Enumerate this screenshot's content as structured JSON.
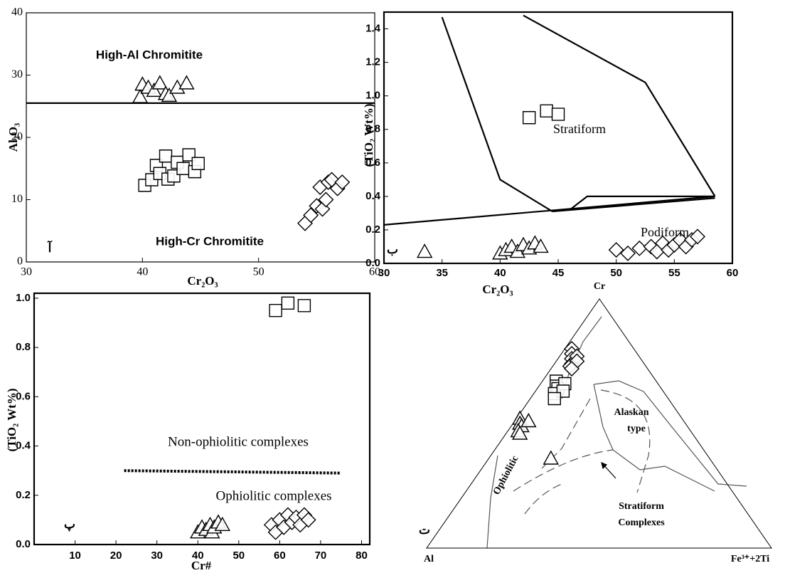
{
  "chart_data": [
    {
      "type": "scatter",
      "panel_label": "آ",
      "xlabel": "Cr₂O₃",
      "ylabel": "Al₂O₃",
      "xlim": [
        30,
        60
      ],
      "xticks": [
        30,
        40,
        50,
        60
      ],
      "ylim": [
        0,
        40
      ],
      "yticks": [
        0,
        10,
        20,
        30,
        40
      ],
      "annotations": [
        "High-Al Chromitite",
        "High-Cr Chromitite"
      ],
      "lines": [
        {
          "x": [
            30,
            60
          ],
          "y": [
            25.5,
            25.5
          ],
          "style": "solid"
        }
      ],
      "series": [
        {
          "marker": "triangle",
          "color": "#000000",
          "x": [
            39.8,
            40,
            40.5,
            41,
            41.5,
            42,
            42.3,
            43,
            43.8
          ],
          "values": [
            26.5,
            28.5,
            28,
            27.5,
            28.7,
            27,
            26.7,
            28,
            28.7
          ]
        },
        {
          "marker": "square",
          "color": "#000000",
          "x": [
            40.2,
            40.8,
            41.2,
            41.5,
            42,
            42.2,
            42.7,
            43,
            43.5,
            44,
            44.5,
            44.8
          ],
          "values": [
            12.3,
            13.2,
            15.5,
            14.2,
            17,
            13.3,
            13.8,
            16,
            15,
            17.2,
            14.5,
            15.8
          ]
        },
        {
          "marker": "diamond",
          "color": "#000000",
          "x": [
            54,
            54.5,
            55,
            55.3,
            55.5,
            55.8,
            56,
            56.3,
            56.8,
            57.2
          ],
          "values": [
            6.2,
            7.5,
            9,
            12,
            8.5,
            10,
            12.8,
            13.2,
            11.8,
            12.8
          ]
        }
      ]
    },
    {
      "type": "scatter",
      "panel_label": "ب",
      "xlabel": "Cr₂O₃",
      "ylabel": "(TiO₂ Wt%)",
      "xlim": [
        30,
        60
      ],
      "xticks": [
        30,
        35,
        40,
        45,
        50,
        55,
        60
      ],
      "ylim": [
        0,
        1.5
      ],
      "yticks": [
        {
          "value": 0,
          "label": "0.0"
        },
        0.2,
        0.4,
        0.6,
        0.8,
        {
          "value": 1,
          "label": "1.0"
        },
        1.2,
        1.4
      ],
      "annotations": [
        "Stratiform",
        "Podiform"
      ],
      "lines": [
        {
          "x": [
            30,
            58.5
          ],
          "y": [
            0.23,
            0.4
          ],
          "style": "solid"
        },
        {
          "x": [
            35,
            40,
            44.5
          ],
          "y": [
            1.47,
            0.5,
            0.31
          ],
          "style": "solid"
        },
        {
          "x": [
            42,
            52.5,
            58.5
          ],
          "y": [
            1.48,
            1.08,
            0.4
          ],
          "style": "solid"
        },
        {
          "x": [
            44.5,
            58.5
          ],
          "y": [
            0.31,
            0.39
          ],
          "style": "solid"
        },
        {
          "x": [
            46,
            47.5,
            58.5
          ],
          "y": [
            0.32,
            0.4,
            0.4
          ],
          "style": "solid"
        }
      ],
      "series": [
        {
          "marker": "triangle",
          "color": "#000000",
          "x": [
            33.5,
            40,
            40.5,
            41,
            41.5,
            42,
            42.5,
            43,
            43.5
          ],
          "values": [
            0.07,
            0.06,
            0.08,
            0.1,
            0.07,
            0.11,
            0.09,
            0.12,
            0.1
          ]
        },
        {
          "marker": "square",
          "color": "#000000",
          "x": [
            42.5,
            44,
            45
          ],
          "values": [
            0.87,
            0.91,
            0.89
          ]
        },
        {
          "marker": "diamond",
          "color": "#000000",
          "x": [
            50,
            51,
            52,
            53,
            53.5,
            54,
            54.5,
            55,
            55.5,
            56,
            56.5,
            57
          ],
          "values": [
            0.08,
            0.06,
            0.09,
            0.1,
            0.07,
            0.12,
            0.08,
            0.11,
            0.14,
            0.1,
            0.14,
            0.16
          ]
        }
      ]
    },
    {
      "type": "scatter",
      "panel_label": "پ",
      "xlabel": "Cr#",
      "ylabel": "(TiO₂ Wt%)",
      "xlim": [
        0,
        82
      ],
      "xticks": [
        10,
        20,
        30,
        40,
        50,
        60,
        70,
        80
      ],
      "ylim": [
        0,
        1.02
      ],
      "yticks": [
        {
          "value": 0,
          "label": "0.0"
        },
        0.2,
        0.4,
        0.6,
        0.8,
        {
          "value": 1,
          "label": "1.0"
        }
      ],
      "annotations": [
        "Non-ophiolitic complexes",
        "Ophiolitic complexes"
      ],
      "lines": [
        {
          "x": [
            22,
            75
          ],
          "y": [
            0.3,
            0.29
          ],
          "style": "dotted"
        }
      ],
      "series": [
        {
          "marker": "triangle",
          "color": "#000000",
          "x": [
            40,
            41,
            42,
            43,
            43.5,
            44,
            45,
            46
          ],
          "values": [
            0.05,
            0.07,
            0.06,
            0.08,
            0.05,
            0.07,
            0.09,
            0.08
          ]
        },
        {
          "marker": "square",
          "color": "#000000",
          "x": [
            59,
            62,
            66
          ],
          "values": [
            0.95,
            0.98,
            0.97
          ]
        },
        {
          "marker": "diamond",
          "color": "#000000",
          "x": [
            58,
            59,
            60,
            61,
            62,
            63,
            64,
            65,
            66,
            67
          ],
          "values": [
            0.08,
            0.05,
            0.1,
            0.07,
            0.12,
            0.09,
            0.11,
            0.08,
            0.12,
            0.1
          ]
        }
      ]
    },
    {
      "type": "ternary",
      "panel_label": "ت",
      "vertex_labels": [
        "Cr",
        "Al",
        "Fe³⁺+2Ti"
      ],
      "annotations": [
        "Alaskan",
        "type",
        "Ophiolitic",
        "Stratiform",
        "Complexes"
      ],
      "series": [
        {
          "marker": "diamond",
          "color": "#000000",
          "cr": [
            80,
            78,
            76,
            74,
            73,
            77,
            75,
            72
          ],
          "al": [
            18,
            19,
            20,
            21,
            22,
            18,
            19,
            22
          ],
          "fe": [
            2,
            3,
            4,
            5,
            5,
            5,
            6,
            6
          ]
        },
        {
          "marker": "square",
          "color": "#000000",
          "cr": [
            67,
            65,
            64,
            62,
            66,
            63,
            60
          ],
          "al": [
            29,
            30,
            30,
            32,
            27,
            29,
            33
          ],
          "fe": [
            4,
            5,
            6,
            6,
            7,
            8,
            7
          ]
        },
        {
          "marker": "triangle",
          "color": "#000000",
          "cr": [
            52,
            50,
            49,
            47,
            46,
            51,
            36
          ],
          "al": [
            47,
            48,
            48,
            50,
            50,
            45,
            46
          ],
          "fe": [
            1,
            2,
            3,
            3,
            4,
            4,
            18
          ]
        }
      ]
    }
  ]
}
